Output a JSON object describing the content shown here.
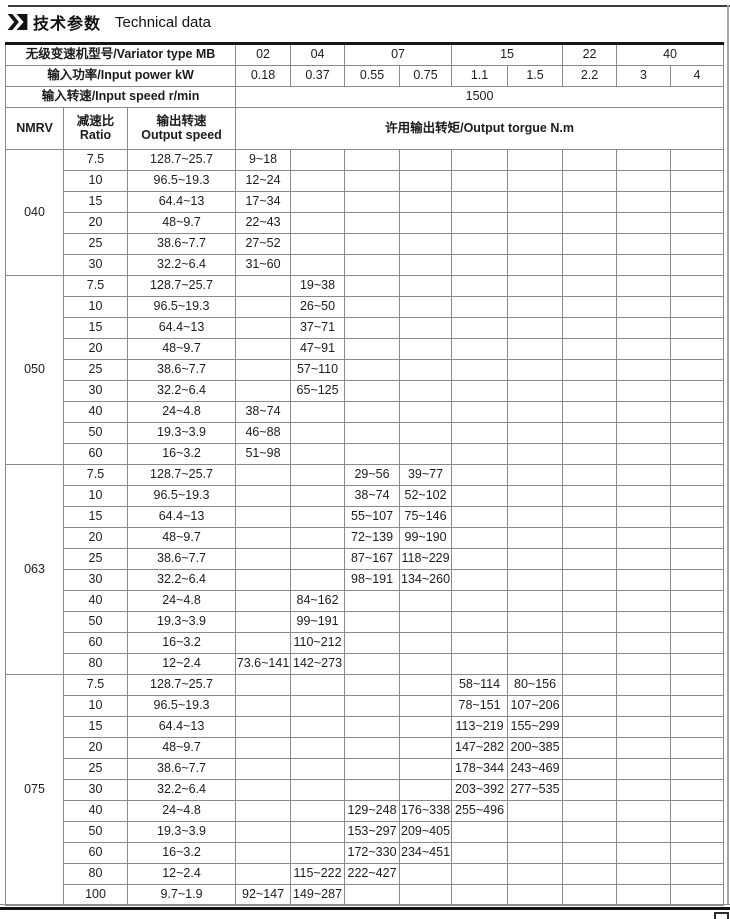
{
  "page": {
    "title_zh": "技术参数",
    "title_en": "Technical data",
    "header_bg": "#dcdcdc",
    "grid_color": "#8a8a8a",
    "border_color": "#161616"
  },
  "table": {
    "variator_row_label": "无级变速机型号/Variator type MB",
    "variator_types": [
      {
        "label": "02"
      },
      {
        "label": "04"
      },
      {
        "label": "07"
      },
      {
        "label": "15"
      },
      {
        "label": "22"
      },
      {
        "label": "40"
      }
    ],
    "power_row_label": "输入功率/Input power kW",
    "power_values": [
      "0.18",
      "0.37",
      "0.55",
      "0.75",
      "1.1",
      "1.5",
      "2.2",
      "3",
      "4"
    ],
    "speed_row_label": "输入转速/Input speed r/min",
    "speed_value": "1500",
    "col_nmrv": "NMRV",
    "col_ratio_zh": "减速比",
    "col_ratio_en": "Ratio",
    "col_output_speed_zh": "输出转速",
    "col_output_speed_en": "Output speed",
    "col_torque": "许用输出转矩/Output torgue N.m",
    "groups": [
      {
        "model": "040",
        "rows": [
          {
            "ratio": "7.5",
            "output_speed": "128.7~25.7",
            "torques": [
              "9~18",
              "",
              "",
              "",
              "",
              "",
              "",
              "",
              ""
            ]
          },
          {
            "ratio": "10",
            "output_speed": "96.5~19.3",
            "torques": [
              "12~24",
              "",
              "",
              "",
              "",
              "",
              "",
              "",
              ""
            ]
          },
          {
            "ratio": "15",
            "output_speed": "64.4~13",
            "torques": [
              "17~34",
              "",
              "",
              "",
              "",
              "",
              "",
              "",
              ""
            ]
          },
          {
            "ratio": "20",
            "output_speed": "48~9.7",
            "torques": [
              "22~43",
              "",
              "",
              "",
              "",
              "",
              "",
              "",
              ""
            ]
          },
          {
            "ratio": "25",
            "output_speed": "38.6~7.7",
            "torques": [
              "27~52",
              "",
              "",
              "",
              "",
              "",
              "",
              "",
              ""
            ]
          },
          {
            "ratio": "30",
            "output_speed": "32.2~6.4",
            "torques": [
              "31~60",
              "",
              "",
              "",
              "",
              "",
              "",
              "",
              ""
            ]
          }
        ]
      },
      {
        "model": "050",
        "rows": [
          {
            "ratio": "7.5",
            "output_speed": "128.7~25.7",
            "torques": [
              "",
              "19~38",
              "",
              "",
              "",
              "",
              "",
              "",
              ""
            ]
          },
          {
            "ratio": "10",
            "output_speed": "96.5~19.3",
            "torques": [
              "",
              "26~50",
              "",
              "",
              "",
              "",
              "",
              "",
              ""
            ]
          },
          {
            "ratio": "15",
            "output_speed": "64.4~13",
            "torques": [
              "",
              "37~71",
              "",
              "",
              "",
              "",
              "",
              "",
              ""
            ]
          },
          {
            "ratio": "20",
            "output_speed": "48~9.7",
            "torques": [
              "",
              "47~91",
              "",
              "",
              "",
              "",
              "",
              "",
              ""
            ]
          },
          {
            "ratio": "25",
            "output_speed": "38.6~7.7",
            "torques": [
              "",
              "57~110",
              "",
              "",
              "",
              "",
              "",
              "",
              ""
            ]
          },
          {
            "ratio": "30",
            "output_speed": "32.2~6.4",
            "torques": [
              "",
              "65~125",
              "",
              "",
              "",
              "",
              "",
              "",
              ""
            ]
          },
          {
            "ratio": "40",
            "output_speed": "24~4.8",
            "torques": [
              "38~74",
              "",
              "",
              "",
              "",
              "",
              "",
              "",
              ""
            ]
          },
          {
            "ratio": "50",
            "output_speed": "19.3~3.9",
            "torques": [
              "46~88",
              "",
              "",
              "",
              "",
              "",
              "",
              "",
              ""
            ]
          },
          {
            "ratio": "60",
            "output_speed": "16~3.2",
            "torques": [
              "51~98",
              "",
              "",
              "",
              "",
              "",
              "",
              "",
              ""
            ]
          }
        ]
      },
      {
        "model": "063",
        "rows": [
          {
            "ratio": "7.5",
            "output_speed": "128.7~25.7",
            "torques": [
              "",
              "",
              "29~56",
              "39~77",
              "",
              "",
              "",
              "",
              ""
            ]
          },
          {
            "ratio": "10",
            "output_speed": "96.5~19.3",
            "torques": [
              "",
              "",
              "38~74",
              "52~102",
              "",
              "",
              "",
              "",
              ""
            ]
          },
          {
            "ratio": "15",
            "output_speed": "64.4~13",
            "torques": [
              "",
              "",
              "55~107",
              "75~146",
              "",
              "",
              "",
              "",
              ""
            ]
          },
          {
            "ratio": "20",
            "output_speed": "48~9.7",
            "torques": [
              "",
              "",
              "72~139",
              "99~190",
              "",
              "",
              "",
              "",
              ""
            ]
          },
          {
            "ratio": "25",
            "output_speed": "38.6~7.7",
            "torques": [
              "",
              "",
              "87~167",
              "118~229",
              "",
              "",
              "",
              "",
              ""
            ]
          },
          {
            "ratio": "30",
            "output_speed": "32.2~6.4",
            "torques": [
              "",
              "",
              "98~191",
              "134~260",
              "",
              "",
              "",
              "",
              ""
            ]
          },
          {
            "ratio": "40",
            "output_speed": "24~4.8",
            "torques": [
              "",
              "84~162",
              "",
              "",
              "",
              "",
              "",
              "",
              ""
            ]
          },
          {
            "ratio": "50",
            "output_speed": "19.3~3.9",
            "torques": [
              "",
              "99~191",
              "",
              "",
              "",
              "",
              "",
              "",
              ""
            ]
          },
          {
            "ratio": "60",
            "output_speed": "16~3.2",
            "torques": [
              "",
              "110~212",
              "",
              "",
              "",
              "",
              "",
              "",
              ""
            ]
          },
          {
            "ratio": "80",
            "output_speed": "12~2.4",
            "torques": [
              "73.6~141",
              "142~273",
              "",
              "",
              "",
              "",
              "",
              "",
              ""
            ]
          }
        ]
      },
      {
        "model": "075",
        "rows": [
          {
            "ratio": "7.5",
            "output_speed": "128.7~25.7",
            "torques": [
              "",
              "",
              "",
              "",
              "58~114",
              "80~156",
              "",
              "",
              ""
            ]
          },
          {
            "ratio": "10",
            "output_speed": "96.5~19.3",
            "torques": [
              "",
              "",
              "",
              "",
              "78~151",
              "107~206",
              "",
              "",
              ""
            ]
          },
          {
            "ratio": "15",
            "output_speed": "64.4~13",
            "torques": [
              "",
              "",
              "",
              "",
              "113~219",
              "155~299",
              "",
              "",
              ""
            ]
          },
          {
            "ratio": "20",
            "output_speed": "48~9.7",
            "torques": [
              "",
              "",
              "",
              "",
              "147~282",
              "200~385",
              "",
              "",
              ""
            ]
          },
          {
            "ratio": "25",
            "output_speed": "38.6~7.7",
            "torques": [
              "",
              "",
              "",
              "",
              "178~344",
              "243~469",
              "",
              "",
              ""
            ]
          },
          {
            "ratio": "30",
            "output_speed": "32.2~6.4",
            "torques": [
              "",
              "",
              "",
              "",
              "203~392",
              "277~535",
              "",
              "",
              ""
            ]
          },
          {
            "ratio": "40",
            "output_speed": "24~4.8",
            "torques": [
              "",
              "",
              "129~248",
              "176~338",
              "255~496",
              "",
              "",
              "",
              ""
            ]
          },
          {
            "ratio": "50",
            "output_speed": "19.3~3.9",
            "torques": [
              "",
              "",
              "153~297",
              "209~405",
              "",
              "",
              "",
              "",
              ""
            ]
          },
          {
            "ratio": "60",
            "output_speed": "16~3.2",
            "torques": [
              "",
              "",
              "172~330",
              "234~451",
              "",
              "",
              "",
              "",
              ""
            ]
          },
          {
            "ratio": "80",
            "output_speed": "12~2.4",
            "torques": [
              "",
              "115~222",
              "222~427",
              "",
              "",
              "",
              "",
              "",
              ""
            ]
          },
          {
            "ratio": "100",
            "output_speed": "9.7~1.9",
            "torques": [
              "92~147",
              "149~287",
              "",
              "",
              "",
              "",
              "",
              "",
              ""
            ]
          }
        ]
      }
    ]
  }
}
